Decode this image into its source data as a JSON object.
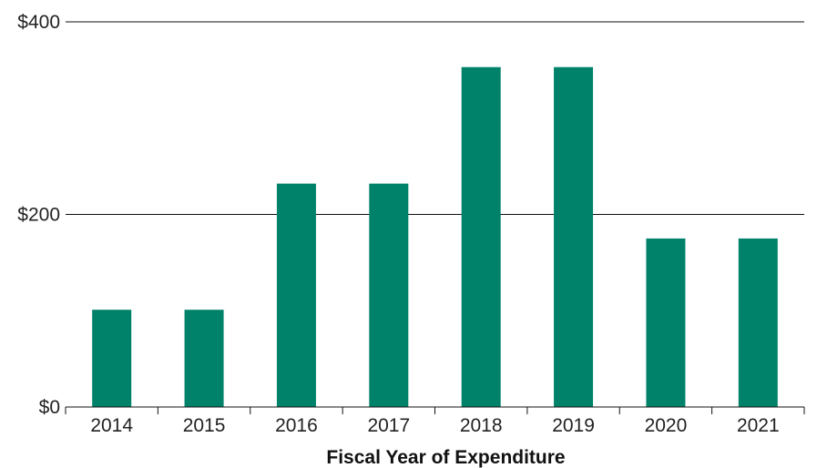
{
  "chart_data": {
    "type": "bar",
    "categories": [
      "2014",
      "2015",
      "2016",
      "2017",
      "2018",
      "2019",
      "2020",
      "2021"
    ],
    "values": [
      101,
      101,
      232,
      232,
      353,
      353,
      175,
      175
    ],
    "title": "",
    "xlabel": "Fiscal Year of Expenditure",
    "ylabel": "",
    "ylim": [
      0,
      400
    ],
    "yticks": [
      0,
      200,
      400
    ],
    "ytick_labels": [
      "$0",
      "$200",
      "$400"
    ],
    "grid": true,
    "bar_color": "#00826A"
  }
}
